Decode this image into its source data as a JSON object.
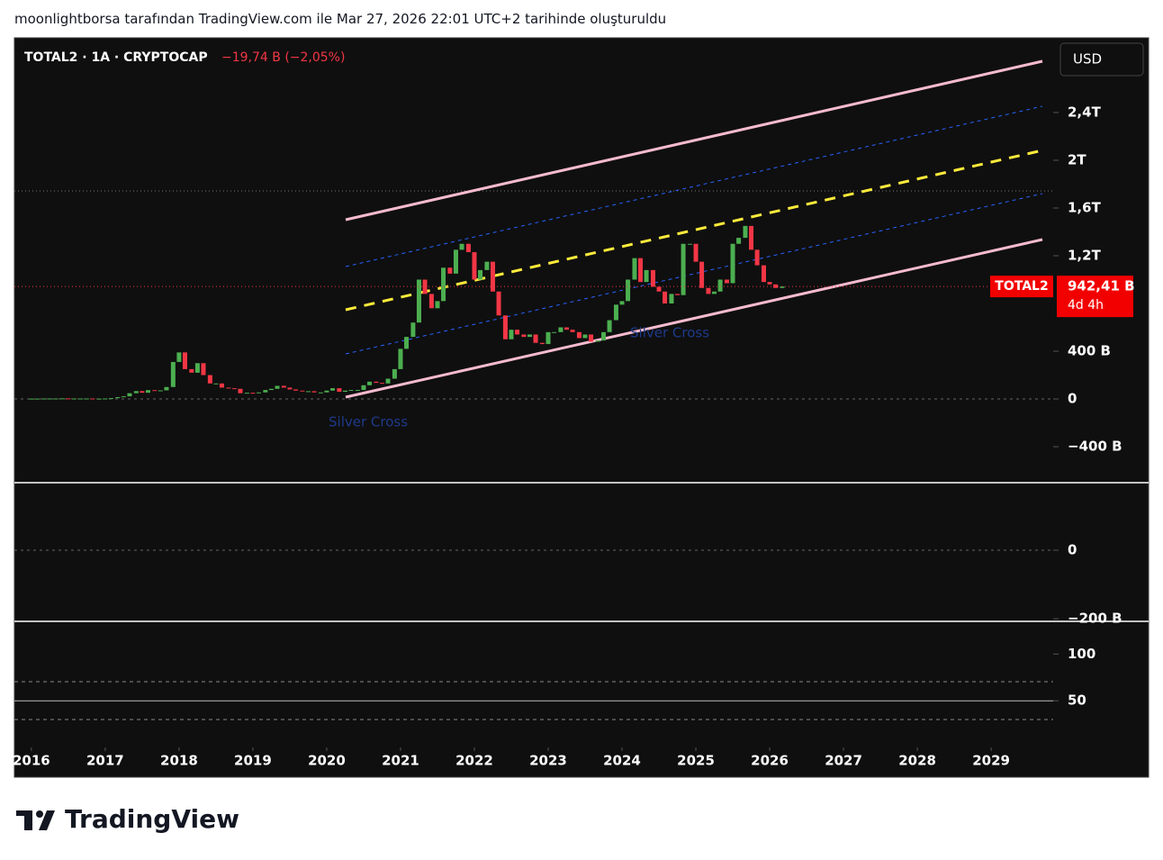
{
  "header": {
    "attribution": "moonlightborsa tarafından TradingView.com ile Mar 27, 2026 22:01 UTC+2 tarihinde oluşturuldu"
  },
  "branding": "TradingView",
  "chart_data": {
    "type": "candlestick",
    "title": "TOTAL2 · 1A · CRYPTOCAP",
    "subtitle": "−19,74 B (−2,05%)",
    "currency": "USD",
    "up_color": "#4caf50",
    "down_color": "#f23645",
    "x": [
      2016.0,
      2016.08,
      2016.17,
      2016.25,
      2016.33,
      2016.42,
      2016.5,
      2016.58,
      2016.67,
      2016.75,
      2016.83,
      2016.92,
      2017.0,
      2017.08,
      2017.17,
      2017.25,
      2017.33,
      2017.42,
      2017.5,
      2017.58,
      2017.67,
      2017.75,
      2017.83,
      2017.92,
      2018.0,
      2018.08,
      2018.17,
      2018.25,
      2018.33,
      2018.42,
      2018.5,
      2018.58,
      2018.67,
      2018.75,
      2018.83,
      2018.92,
      2019.0,
      2019.08,
      2019.17,
      2019.25,
      2019.33,
      2019.42,
      2019.5,
      2019.58,
      2019.67,
      2019.75,
      2019.83,
      2019.92,
      2020.0,
      2020.08,
      2020.17,
      2020.25,
      2020.33,
      2020.42,
      2020.5,
      2020.58,
      2020.67,
      2020.75,
      2020.83,
      2020.92,
      2021.0,
      2021.08,
      2021.17,
      2021.25,
      2021.33,
      2021.42,
      2021.5,
      2021.58,
      2021.67,
      2021.75,
      2021.83,
      2021.92,
      2022.0,
      2022.08,
      2022.17,
      2022.25,
      2022.33,
      2022.42,
      2022.5,
      2022.58,
      2022.67,
      2022.75,
      2022.83,
      2022.92,
      2023.0,
      2023.08,
      2023.17,
      2023.25,
      2023.33,
      2023.42,
      2023.5,
      2023.58,
      2023.67,
      2023.75,
      2023.83,
      2023.92,
      2024.0,
      2024.08,
      2024.17,
      2024.25,
      2024.33,
      2024.42,
      2024.5,
      2024.58,
      2024.67,
      2024.75,
      2024.83,
      2024.92,
      2025.0,
      2025.08,
      2025.17,
      2025.25,
      2025.33,
      2025.42,
      2025.5,
      2025.58,
      2025.67,
      2025.75,
      2025.83,
      2025.92,
      2026.0,
      2026.08,
      2026.17
    ],
    "values": [
      3,
      3,
      4,
      4,
      4,
      5,
      4,
      4,
      4,
      4,
      3,
      3,
      4,
      7,
      15,
      22,
      48,
      66,
      52,
      74,
      70,
      72,
      100,
      310,
      390,
      250,
      220,
      300,
      200,
      130,
      130,
      95,
      90,
      85,
      48,
      52,
      50,
      55,
      75,
      85,
      110,
      95,
      80,
      70,
      65,
      65,
      55,
      55,
      70,
      90,
      60,
      70,
      75,
      75,
      115,
      145,
      135,
      130,
      170,
      250,
      420,
      520,
      640,
      1000,
      880,
      760,
      820,
      1100,
      1050,
      1250,
      1300,
      1230,
      1000,
      1080,
      1150,
      900,
      700,
      500,
      580,
      540,
      520,
      540,
      470,
      460,
      560,
      560,
      600,
      580,
      560,
      510,
      540,
      480,
      490,
      560,
      660,
      790,
      820,
      1000,
      1180,
      980,
      1080,
      940,
      900,
      800,
      880,
      870,
      1300,
      1300,
      1150,
      930,
      880,
      900,
      1000,
      970,
      1300,
      1350,
      1450,
      1250,
      1120,
      980,
      960,
      930,
      942.41
    ],
    "xlim": [
      2015.77,
      2029.84
    ],
    "xticks": [
      2016,
      2017,
      2018,
      2019,
      2020,
      2021,
      2022,
      2023,
      2024,
      2025,
      2026,
      2027,
      2028,
      2029
    ],
    "ylim": [
      -694,
      3026
    ],
    "yticks": [
      {
        "value": 2400,
        "label": "2,4T"
      },
      {
        "value": 2000,
        "label": "2T"
      },
      {
        "value": 1600,
        "label": "1,6T"
      },
      {
        "value": 1200,
        "label": "1,2T"
      },
      {
        "value": 400,
        "label": "400 B"
      },
      0,
      {
        "value": -400,
        "label": "−400 B"
      }
    ],
    "last_price": {
      "label": "TOTAL2",
      "value": 942.41,
      "value_label": "942,41 B",
      "countdown": "4d 4h"
    },
    "annotations": [
      "Silver Cross",
      "Silver Cross"
    ],
    "macd": {
      "ylim": [
        -205,
        197
      ],
      "yticks": [
        0,
        {
          "value": -200,
          "label": "−200 B"
        }
      ]
    },
    "rsi": {
      "ylim": [
        2,
        135
      ],
      "yticks": [
        100,
        50
      ]
    }
  }
}
